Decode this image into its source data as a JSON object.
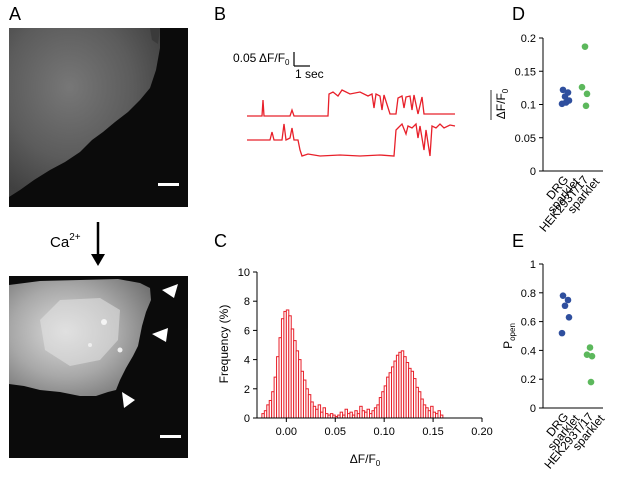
{
  "figure": {
    "panels": {
      "A": {
        "letter": "A",
        "treatment_label": "Ca",
        "treatment_superscript": "2+"
      },
      "B": {
        "letter": "B",
        "scale_y_label": "0.05 ΔF/F",
        "scale_y_subscript": "0",
        "scale_x_label": "1 sec"
      },
      "C": {
        "letter": "C"
      },
      "D": {
        "letter": "D"
      },
      "E": {
        "letter": "E"
      }
    }
  },
  "colors": {
    "trace_red": "#e8202a",
    "drg_blue": "#2f4f9e",
    "hek_green": "#5cb85c",
    "axis": "#000000"
  },
  "chart_data": [
    {
      "id": "C",
      "type": "bar",
      "title": "",
      "xlabel": "ΔF/F",
      "xlabel_subscript": "0",
      "ylabel": "Frequency (%)",
      "xlim": [
        -0.03,
        0.2
      ],
      "ylim": [
        0,
        10
      ],
      "x_ticks": [
        "0.00",
        "0.05",
        "0.10",
        "0.15",
        "0.20"
      ],
      "y_ticks": [
        "0",
        "2",
        "4",
        "6",
        "8",
        "10"
      ],
      "bin_width": 0.0025,
      "x": [
        -0.025,
        -0.0225,
        -0.02,
        -0.0175,
        -0.015,
        -0.0125,
        -0.01,
        -0.0075,
        -0.005,
        -0.0025,
        0,
        0.0025,
        0.005,
        0.0075,
        0.01,
        0.0125,
        0.015,
        0.0175,
        0.02,
        0.0225,
        0.025,
        0.0275,
        0.03,
        0.0325,
        0.035,
        0.0375,
        0.04,
        0.0425,
        0.045,
        0.0475,
        0.05,
        0.0525,
        0.055,
        0.0575,
        0.06,
        0.0625,
        0.065,
        0.0675,
        0.07,
        0.0725,
        0.075,
        0.0775,
        0.08,
        0.0825,
        0.085,
        0.0875,
        0.09,
        0.0925,
        0.095,
        0.0975,
        0.1,
        0.1025,
        0.105,
        0.1075,
        0.11,
        0.1125,
        0.115,
        0.1175,
        0.12,
        0.1225,
        0.125,
        0.1275,
        0.13,
        0.1325,
        0.135,
        0.1375,
        0.14,
        0.1425,
        0.145,
        0.1475,
        0.15,
        0.1525,
        0.155,
        0.1575
      ],
      "values": [
        0.3,
        0.5,
        0.9,
        1.2,
        1.8,
        2.8,
        4.2,
        5.5,
        6.8,
        7.3,
        7.4,
        7.0,
        6.1,
        5.3,
        4.6,
        4.0,
        3.2,
        2.6,
        2.0,
        1.6,
        1.1,
        0.8,
        0.6,
        0.9,
        0.4,
        0.7,
        0.3,
        0.2,
        0.3,
        0.2,
        0.1,
        0.2,
        0.4,
        0.2,
        0.6,
        0.3,
        0.4,
        0.2,
        0.5,
        0.3,
        0.8,
        0.5,
        0.4,
        0.6,
        0.3,
        0.5,
        0.7,
        0.9,
        1.4,
        1.8,
        2.2,
        2.8,
        3.1,
        3.5,
        3.9,
        4.3,
        4.5,
        4.6,
        4.2,
        3.8,
        3.4,
        3.2,
        2.7,
        2.1,
        1.8,
        1.3,
        0.9,
        0.7,
        0.5,
        0.8,
        0.4,
        0.3,
        0.5,
        0.2
      ],
      "series_color": "#e8202a"
    },
    {
      "id": "D",
      "type": "scatter",
      "title": "",
      "ylabel": "ΔF/F",
      "ylabel_subscript": "0",
      "ylim": [
        0,
        0.2
      ],
      "y_ticks": [
        "0",
        "0.05",
        "0.1",
        "0.15",
        "0.2"
      ],
      "categories": [
        "DRG sparklet",
        "HEK293T/17 sparklet"
      ],
      "category_lines": [
        [
          "DRG",
          "sparklet"
        ],
        [
          "HEK293T/17",
          "sparklet"
        ]
      ],
      "series": [
        {
          "category": "DRG sparklet",
          "color": "#2f4f9e",
          "values": [
            0.122,
            0.118,
            0.112,
            0.106,
            0.101,
            0.103
          ]
        },
        {
          "category": "HEK293T/17 sparklet",
          "color": "#5cb85c",
          "values": [
            0.187,
            0.126,
            0.116,
            0.098
          ]
        }
      ]
    },
    {
      "id": "E",
      "type": "scatter",
      "title": "",
      "ylabel": "P",
      "ylabel_subscript": "open",
      "ylim": [
        0,
        1
      ],
      "y_ticks": [
        "0",
        "0.2",
        "0.4",
        "0.6",
        "0.8",
        "1"
      ],
      "categories": [
        "DRG sparklet",
        "HEK293T/17 sparklet"
      ],
      "category_lines": [
        [
          "DRG",
          "sparklet"
        ],
        [
          "HEK293T/17",
          "sparklet"
        ]
      ],
      "series": [
        {
          "category": "DRG sparklet",
          "color": "#2f4f9e",
          "values": [
            0.78,
            0.75,
            0.71,
            0.63,
            0.52
          ]
        },
        {
          "category": "HEK293T/17 sparklet",
          "color": "#5cb85c",
          "values": [
            0.42,
            0.37,
            0.36,
            0.18
          ]
        }
      ]
    }
  ]
}
